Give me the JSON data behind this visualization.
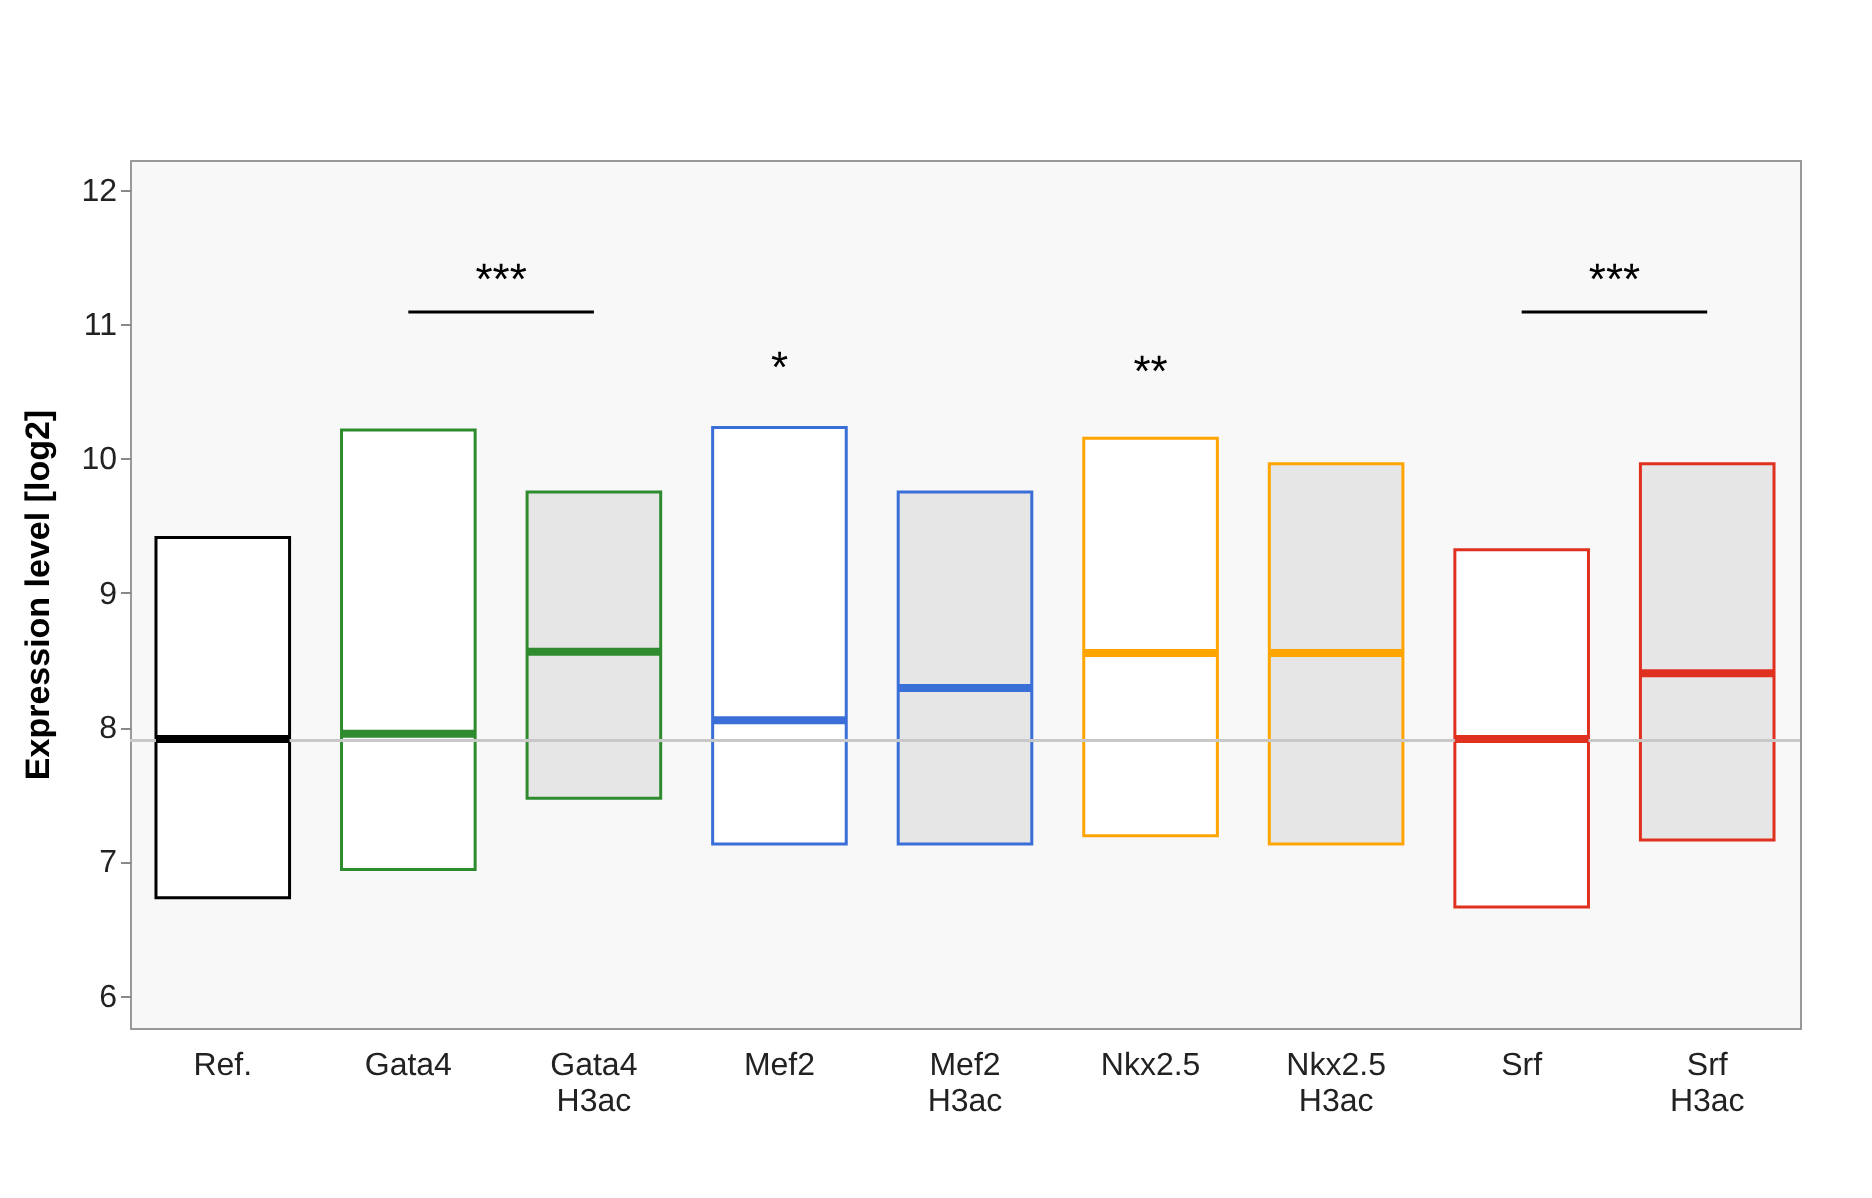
{
  "chart_data": {
    "type": "box",
    "ylabel": "Expression level [log2]",
    "categories": [
      "Ref.",
      "Gata4",
      "Gata4 H3ac",
      "Mef2",
      "Mef2 H3ac",
      "Nkx2.5",
      "Nkx2.5 H3ac",
      "Srf",
      "Srf H3ac"
    ],
    "series": [
      {
        "color": "#ffffff",
        "colors": [
          "#000000",
          "#2e8b2e",
          null,
          "#3a6fd8",
          null,
          "#ffa500",
          null,
          "#e03020",
          null
        ],
        "boxes": [
          {
            "low": 6.73,
            "q1": 6.73,
            "median": 7.91,
            "q3": 9.41,
            "high": 9.41
          },
          {
            "low": 6.94,
            "q1": 6.94,
            "median": 7.95,
            "q3": 10.21,
            "high": 10.21
          },
          null,
          {
            "low": 7.13,
            "q1": 7.13,
            "median": 8.05,
            "q3": 10.23,
            "high": 10.23
          },
          null,
          {
            "low": 7.19,
            "q1": 7.19,
            "median": 8.55,
            "q3": 10.15,
            "high": 10.15
          },
          null,
          {
            "low": 6.66,
            "q1": 6.66,
            "median": 7.91,
            "q3": 9.32,
            "high": 9.32
          },
          null
        ]
      },
      {
        "color": "#e6e6e6",
        "colors": [
          null,
          null,
          "#2e8b2e",
          null,
          "#3a6fd8",
          null,
          "#ffa500",
          null,
          "#e03020"
        ],
        "boxes": [
          null,
          null,
          {
            "low": 7.47,
            "q1": 7.47,
            "median": 8.56,
            "q3": 9.75,
            "high": 9.75
          },
          null,
          {
            "low": 7.13,
            "q1": 7.13,
            "median": 8.29,
            "q3": 9.75,
            "high": 9.75
          },
          null,
          {
            "low": 7.13,
            "q1": 7.13,
            "median": 8.55,
            "q3": 9.96,
            "high": 9.96
          },
          null,
          {
            "low": 7.16,
            "q1": 7.16,
            "median": 8.4,
            "q3": 9.96,
            "high": 9.96
          }
        ]
      }
    ],
    "ylim": [
      5.76,
      12.22
    ],
    "yticks": [
      6,
      7,
      8,
      9,
      10,
      11,
      12
    ],
    "grid": false,
    "ref_lines": [
      {
        "axis": "y",
        "value": 7.9,
        "color": "#c8c8c8"
      }
    ],
    "annotations": [
      "***",
      "*",
      "**",
      "***"
    ]
  }
}
